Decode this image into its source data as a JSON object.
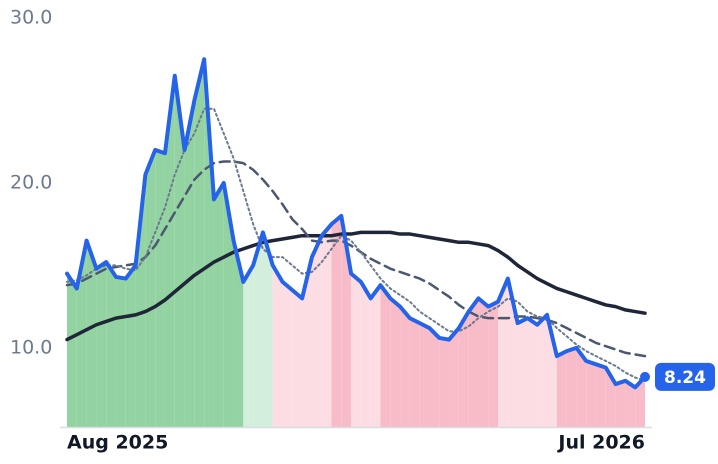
{
  "chart_data": {
    "type": "line",
    "ylim": [
      5.2,
      30
    ],
    "yticks": [
      {
        "value": 10,
        "label": "10.0"
      },
      {
        "value": 20,
        "label": "20.0"
      },
      {
        "value": 30,
        "label": "30.0"
      }
    ],
    "categories": [
      "Aug 2025",
      null,
      null,
      null,
      null,
      null,
      null,
      null,
      null,
      null,
      null,
      null,
      null,
      null,
      null,
      null,
      null,
      null,
      null,
      null,
      null,
      null,
      null,
      null,
      null,
      null,
      null,
      null,
      null,
      null,
      null,
      null,
      null,
      null,
      null,
      null,
      null,
      null,
      null,
      null,
      null,
      null,
      null,
      null,
      null,
      null,
      null,
      null,
      null,
      null,
      null,
      null,
      null,
      null,
      null,
      null,
      null,
      null,
      null,
      "Jul 2026"
    ],
    "series": [
      {
        "color": "#2563eb",
        "style": "solid",
        "width": 4,
        "last_marker": true,
        "values": [
          14.5,
          13.6,
          16.5,
          14.8,
          15.2,
          14.3,
          14.2,
          15.0,
          20.5,
          22.0,
          21.8,
          26.5,
          22.0,
          25.0,
          27.5,
          19.0,
          20.0,
          16.5,
          14.0,
          15.0,
          17.0,
          15.0,
          14.0,
          13.5,
          13.0,
          15.5,
          16.8,
          17.5,
          18.0,
          14.5,
          14.0,
          13.0,
          13.8,
          13.0,
          12.5,
          11.8,
          11.5,
          11.2,
          10.6,
          10.5,
          11.2,
          12.2,
          13.0,
          12.5,
          12.8,
          14.2,
          11.5,
          11.8,
          11.4,
          12.0,
          9.5,
          9.8,
          10.0,
          9.2,
          9.0,
          8.8,
          7.8,
          8.0,
          7.6,
          8.24
        ],
        "area_colors": [
          "#93d3a2",
          "#93d3a2",
          "#93d3a2",
          "#93d3a2",
          "#93d3a2",
          "#93d3a2",
          "#93d3a2",
          "#93d3a2",
          "#93d3a2",
          "#93d3a2",
          "#93d3a2",
          "#93d3a2",
          "#93d3a2",
          "#93d3a2",
          "#93d3a2",
          "#93d3a2",
          "#93d3a2",
          "#93d3a2",
          "#d4eedc",
          "#d4eedc",
          "#d4eedc",
          "#fbdde3",
          "#fbdde3",
          "#fbdde3",
          "#fbdde3",
          "#fbdde3",
          "#fbdde3",
          "#f8bcc8",
          "#f8bcc8",
          "#fbdde3",
          "#fbdde3",
          "#fbdde3",
          "#f8bcc8",
          "#f8bcc8",
          "#f8bcc8",
          "#f8bcc8",
          "#f8bcc8",
          "#f8bcc8",
          "#f8bcc8",
          "#f8bcc8",
          "#f8bcc8",
          "#f8bcc8",
          "#f8bcc8",
          "#f8bcc8",
          "#fbdde3",
          "#fbdde3",
          "#fbdde3",
          "#fbdde3",
          "#fbdde3",
          "#fbdde3",
          "#f8bcc8",
          "#f8bcc8",
          "#f8bcc8",
          "#f8bcc8",
          "#f8bcc8",
          "#f8bcc8",
          "#f8bcc8",
          "#f8bcc8",
          "#f8bcc8",
          "#f8bcc8"
        ]
      },
      {
        "color": "#6b7a8f",
        "style": "dotted",
        "width": 2,
        "values": [
          14.0,
          14.1,
          14.4,
          14.8,
          15.0,
          15.0,
          14.8,
          14.7,
          15.5,
          17.0,
          18.5,
          20.5,
          22.0,
          23.0,
          24.5,
          24.5,
          23.0,
          21.5,
          19.5,
          17.5,
          16.0,
          15.5,
          15.5,
          15.0,
          14.5,
          14.6,
          15.2,
          16.0,
          16.8,
          16.5,
          15.8,
          15.0,
          14.2,
          13.6,
          13.2,
          12.8,
          12.2,
          11.8,
          11.4,
          11.0,
          11.0,
          11.3,
          11.8,
          12.2,
          12.5,
          13.0,
          12.8,
          12.2,
          11.9,
          11.8,
          11.2,
          10.7,
          10.2,
          9.8,
          9.5,
          9.2,
          8.9,
          8.5,
          8.2,
          8.0
        ]
      },
      {
        "color": "#4b5870",
        "style": "dashed",
        "width": 2.5,
        "values": [
          13.8,
          13.9,
          14.2,
          14.5,
          14.8,
          14.9,
          15.0,
          15.1,
          15.5,
          16.2,
          17.2,
          18.2,
          19.2,
          20.2,
          20.8,
          21.2,
          21.3,
          21.3,
          21.2,
          20.8,
          20.2,
          19.5,
          18.7,
          17.8,
          17.2,
          16.5,
          16.4,
          16.5,
          16.5,
          16.2,
          15.8,
          15.4,
          15.1,
          14.8,
          14.6,
          14.4,
          14.2,
          13.9,
          13.5,
          13.1,
          12.6,
          12.2,
          11.9,
          11.8,
          11.8,
          11.8,
          11.9,
          11.9,
          11.8,
          11.7,
          11.5,
          11.2,
          10.9,
          10.6,
          10.3,
          10.1,
          9.9,
          9.7,
          9.6,
          9.5
        ]
      },
      {
        "color": "#1e2638",
        "style": "solid",
        "width": 3.5,
        "values": [
          10.5,
          10.8,
          11.1,
          11.4,
          11.6,
          11.8,
          11.9,
          12.0,
          12.2,
          12.5,
          12.9,
          13.4,
          13.9,
          14.4,
          14.8,
          15.2,
          15.5,
          15.8,
          16.0,
          16.2,
          16.4,
          16.5,
          16.6,
          16.7,
          16.8,
          16.8,
          16.8,
          16.8,
          16.9,
          16.9,
          17.0,
          17.0,
          17.0,
          17.0,
          16.9,
          16.9,
          16.8,
          16.7,
          16.6,
          16.5,
          16.4,
          16.4,
          16.3,
          16.2,
          15.9,
          15.5,
          15.0,
          14.6,
          14.2,
          13.9,
          13.6,
          13.4,
          13.2,
          13.0,
          12.8,
          12.6,
          12.5,
          12.3,
          12.2,
          12.1
        ]
      }
    ]
  }
}
